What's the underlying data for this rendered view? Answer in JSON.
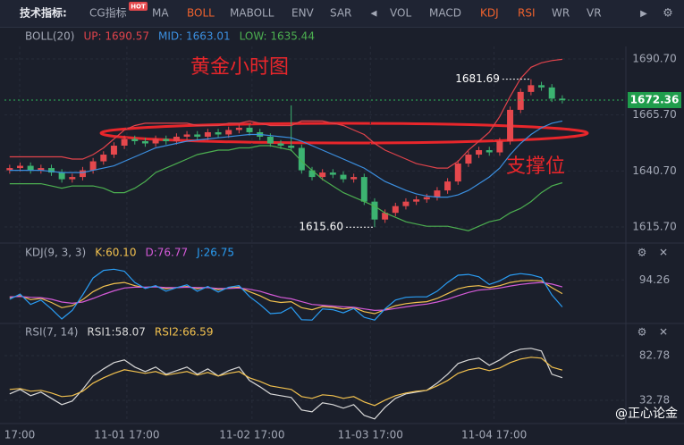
{
  "toolbar": {
    "label": "技术指标:",
    "badge": "HOT",
    "items": [
      {
        "text": "CG指标",
        "active": false
      },
      {
        "text": "MA",
        "active": false
      },
      {
        "text": "BOLL",
        "active": true
      },
      {
        "text": "MABOLL",
        "active": false
      },
      {
        "text": "ENV",
        "active": false
      },
      {
        "text": "SAR",
        "active": false
      },
      {
        "text": "VOL",
        "active": false
      },
      {
        "text": "MACD",
        "active": false
      },
      {
        "text": "KDJ",
        "active": true
      },
      {
        "text": "RSI",
        "active": true
      },
      {
        "text": "WR",
        "active": false
      },
      {
        "text": "VR",
        "active": false
      }
    ]
  },
  "watermark": "@正心论金",
  "chart_data": [
    {
      "type": "candlestick",
      "title": "BOLL(20)",
      "up_color": "#e5484d",
      "down_color": "#3cb371",
      "grid": true,
      "x": [
        0,
        1,
        2,
        3,
        4,
        5,
        6,
        7,
        8,
        9,
        10,
        11,
        12,
        13,
        14,
        15,
        16,
        17,
        18,
        19,
        20,
        21,
        22,
        23,
        24,
        25,
        26,
        27,
        28,
        29,
        30,
        31,
        32,
        33,
        34,
        35,
        36,
        37,
        38,
        39,
        40,
        41,
        42,
        43,
        44,
        45,
        46,
        47,
        48,
        49,
        50,
        51,
        52,
        53
      ],
      "xlim": [
        -0.5,
        59.1
      ],
      "xticks": [
        {
          "value": 0.96,
          "label": "17:00"
        },
        {
          "value": 11.24,
          "label": "11-01 17:00"
        },
        {
          "value": 23.24,
          "label": "11-02 17:00"
        },
        {
          "value": 34.6,
          "label": "11-03 17:00"
        },
        {
          "value": 46.46,
          "label": "11-04 17:00"
        }
      ],
      "ylim": [
        1609.3,
        1696.3
      ],
      "yticks": [
        {
          "value": 1690.7,
          "label": "1690.70"
        },
        {
          "value": 1665.7,
          "label": "1665.70"
        },
        {
          "value": 1640.7,
          "label": "1640.70"
        },
        {
          "value": 1615.7,
          "label": "1615.70"
        }
      ],
      "open": [
        1641,
        1642,
        1643,
        1641,
        1642,
        1640,
        1637,
        1638,
        1641,
        1645,
        1648,
        1652,
        1655,
        1654,
        1653,
        1655,
        1654,
        1656,
        1657,
        1656,
        1658,
        1657,
        1659,
        1660,
        1658,
        1656,
        1653,
        1652,
        1651,
        1641,
        1638,
        1640,
        1639,
        1637,
        1638,
        1627,
        1619,
        1622,
        1625,
        1627,
        1628,
        1629,
        1632,
        1636,
        1644,
        1648,
        1650,
        1649,
        1654,
        1668,
        1676,
        1679,
        1678,
        1673
      ],
      "high": [
        1643.5,
        1644.5,
        1644.5,
        1643.5,
        1643.5,
        1641.5,
        1639.5,
        1642.5,
        1646.5,
        1649.5,
        1653.5,
        1656.5,
        1656.5,
        1655.5,
        1656.5,
        1656.5,
        1657.5,
        1658.5,
        1658.5,
        1659.5,
        1659.5,
        1660.5,
        1661.5,
        1661.5,
        1659.5,
        1657.5,
        1654.5,
        1670,
        1652.5,
        1642.5,
        1641.5,
        1641.5,
        1640.5,
        1639.5,
        1639.5,
        1628.5,
        1623.5,
        1626.5,
        1628.5,
        1629.5,
        1630.5,
        1633.5,
        1637.5,
        1645.5,
        1649.5,
        1651.5,
        1651.5,
        1655.5,
        1669.5,
        1677.5,
        1681.69,
        1680.5,
        1679.5,
        1674.5
      ],
      "low": [
        1639.5,
        1640.5,
        1639.5,
        1639.5,
        1638.5,
        1635.5,
        1635.5,
        1636.5,
        1639.5,
        1643.5,
        1646.5,
        1650.5,
        1652.5,
        1651.5,
        1651.5,
        1652.5,
        1652.5,
        1654.5,
        1654.5,
        1654.5,
        1655.5,
        1655.5,
        1657.5,
        1656.5,
        1654.5,
        1651.5,
        1650.5,
        1649.5,
        1639.5,
        1636.5,
        1636.5,
        1637.5,
        1635.5,
        1635.5,
        1625.5,
        1615.6,
        1617.5,
        1620.5,
        1623.5,
        1625.5,
        1626.5,
        1627.5,
        1630.5,
        1634.5,
        1642.5,
        1646.5,
        1647.5,
        1647.5,
        1652.5,
        1666.5,
        1674.5,
        1676.5,
        1671.5,
        1670.86
      ],
      "close": [
        1642,
        1643,
        1641,
        1642,
        1640,
        1637,
        1638,
        1641,
        1645,
        1648,
        1652,
        1655,
        1654,
        1653,
        1655,
        1654,
        1656,
        1657,
        1656,
        1658,
        1657,
        1659,
        1660,
        1658,
        1656,
        1653,
        1652,
        1651,
        1641,
        1638,
        1640,
        1639,
        1637,
        1638,
        1627,
        1619,
        1622,
        1625,
        1627,
        1628,
        1629,
        1632,
        1636,
        1644,
        1648,
        1650,
        1649,
        1654,
        1668,
        1676,
        1679,
        1678,
        1673,
        1672.36
      ],
      "series": [
        {
          "name": "UP: 1690.57",
          "color": "#e0434b",
          "values": [
            1647,
            1647,
            1647,
            1647,
            1647,
            1647,
            1646,
            1646,
            1648,
            1651,
            1655,
            1659,
            1661,
            1662,
            1662,
            1662,
            1662,
            1662,
            1661,
            1661,
            1661,
            1662,
            1662,
            1663,
            1662,
            1661,
            1661,
            1661,
            1663,
            1663,
            1663,
            1662,
            1661,
            1659,
            1657,
            1653,
            1650,
            1648,
            1646,
            1644,
            1643,
            1642,
            1642,
            1645,
            1650,
            1654,
            1658,
            1665,
            1674,
            1682,
            1687,
            1689,
            1690,
            1690.57
          ]
        },
        {
          "name": "MID: 1663.01",
          "color": "#3b8fe0",
          "values": [
            1641,
            1641,
            1641,
            1641,
            1640.5,
            1640,
            1640,
            1640,
            1641,
            1642,
            1643,
            1645,
            1647,
            1649,
            1651,
            1652,
            1653,
            1654,
            1654.5,
            1655,
            1655.5,
            1656,
            1656.5,
            1657,
            1657,
            1656.5,
            1656,
            1655.5,
            1654,
            1652,
            1650,
            1648,
            1646,
            1644,
            1642,
            1639,
            1636,
            1634,
            1632,
            1630.5,
            1629.5,
            1629,
            1629,
            1630,
            1632,
            1635,
            1638,
            1642,
            1648,
            1653,
            1657,
            1660,
            1662,
            1663.01
          ]
        },
        {
          "name": "LOW: 1635.44",
          "color": "#4caf50",
          "values": [
            1635,
            1635,
            1635,
            1635,
            1634,
            1633,
            1634,
            1634,
            1634,
            1633,
            1631,
            1631,
            1633,
            1636,
            1640,
            1642,
            1644,
            1646,
            1648,
            1649,
            1650,
            1650,
            1651,
            1651,
            1652,
            1652,
            1651,
            1650,
            1645,
            1641,
            1637,
            1634,
            1631,
            1629,
            1627,
            1625,
            1622,
            1620,
            1618,
            1617,
            1616,
            1616,
            1616,
            1615,
            1614,
            1616,
            1618,
            1619,
            1622,
            1624,
            1627,
            1631,
            1634,
            1635.44
          ]
        }
      ],
      "annotations": [
        {
          "text": "黄金小时图"
        },
        {
          "text": "支撑位"
        },
        {
          "text": "1681.69",
          "x": 50,
          "y": 1681.69
        },
        {
          "text": "1615.60",
          "x": 35,
          "y": 1615.6
        }
      ]
    },
    {
      "type": "line",
      "title": "KDJ(9, 3, 3)",
      "grid": true,
      "ylim": [
        -10,
        135
      ],
      "yticks": [
        94.26
      ],
      "series": [
        {
          "name": "K:60.10",
          "color": "#f2c14e",
          "values": [
            50,
            55,
            45,
            48,
            38,
            25,
            30,
            45,
            65,
            78,
            85,
            88,
            80,
            75,
            78,
            72,
            75,
            78,
            72,
            76,
            70,
            74,
            76,
            65,
            55,
            42,
            38,
            40,
            25,
            20,
            28,
            26,
            22,
            25,
            15,
            10,
            20,
            30,
            35,
            38,
            40,
            48,
            60,
            72,
            78,
            80,
            75,
            80,
            88,
            92,
            93,
            92,
            75,
            60.1
          ]
        },
        {
          "name": "D:76.77",
          "color": "#d45ad8",
          "values": [
            52,
            53,
            51,
            50,
            46,
            39,
            36,
            39,
            48,
            58,
            67,
            74,
            76,
            76,
            77,
            75,
            75,
            76,
            75,
            75,
            73,
            73,
            74,
            71,
            66,
            58,
            51,
            47,
            40,
            33,
            31,
            29,
            27,
            26,
            22,
            18,
            19,
            23,
            27,
            31,
            34,
            39,
            46,
            55,
            63,
            69,
            71,
            74,
            79,
            83,
            86,
            88,
            84,
            76.77
          ]
        },
        {
          "name": "J:26.75",
          "color": "#2a9df4",
          "values": [
            46,
            59,
            33,
            44,
            22,
            -3,
            18,
            57,
            99,
            118,
            121,
            116,
            88,
            73,
            80,
            66,
            75,
            82,
            66,
            78,
            64,
            76,
            80,
            53,
            33,
            10,
            12,
            26,
            -5,
            -6,
            22,
            20,
            12,
            23,
            1,
            -6,
            22,
            44,
            51,
            52,
            52,
            66,
            88,
            106,
            108,
            102,
            83,
            92,
            106,
            110,
            107,
            100,
            57,
            26.75
          ]
        }
      ]
    },
    {
      "type": "line",
      "title": "RSI(7, 14)",
      "grid": true,
      "ylim": [
        8.78,
        98.78
      ],
      "yticks": [
        82.78,
        32.78
      ],
      "series": [
        {
          "name": "RSI1:58.07",
          "color": "#d8d8d8",
          "values": [
            40,
            45,
            38,
            42,
            35,
            28,
            32,
            45,
            60,
            68,
            75,
            78,
            70,
            65,
            70,
            62,
            66,
            70,
            62,
            68,
            60,
            66,
            70,
            55,
            48,
            40,
            38,
            36,
            22,
            20,
            30,
            28,
            24,
            28,
            16,
            12,
            25,
            35,
            40,
            42,
            44,
            52,
            62,
            74,
            78,
            80,
            72,
            78,
            86,
            90,
            91,
            88,
            62,
            58.07
          ]
        },
        {
          "name": "RSI2:66.59",
          "color": "#f2c14e",
          "values": [
            45,
            46,
            43,
            44,
            41,
            37,
            38,
            43,
            52,
            58,
            63,
            67,
            65,
            63,
            65,
            61,
            63,
            65,
            61,
            64,
            60,
            63,
            65,
            58,
            54,
            49,
            47,
            45,
            37,
            35,
            39,
            38,
            35,
            37,
            31,
            27,
            33,
            38,
            41,
            43,
            44,
            49,
            55,
            63,
            67,
            69,
            66,
            69,
            75,
            79,
            81,
            80,
            70,
            66.59
          ]
        }
      ]
    }
  ]
}
